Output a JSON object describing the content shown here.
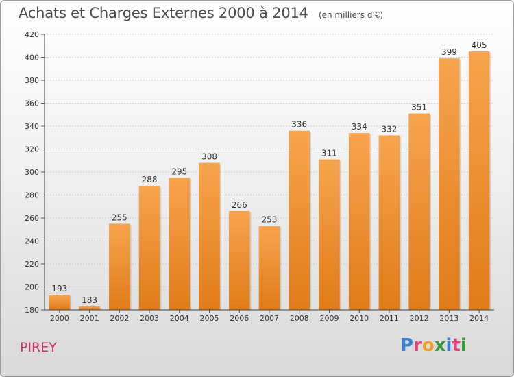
{
  "chart_data": {
    "type": "bar",
    "title": "Achats et Charges Externes 2000 à 2014",
    "subtitle": "(en milliers d'€)",
    "categories": [
      "2000",
      "2001",
      "2002",
      "2003",
      "2004",
      "2005",
      "2006",
      "2007",
      "2008",
      "2009",
      "2010",
      "2011",
      "2012",
      "2013",
      "2014"
    ],
    "values": [
      193,
      183,
      255,
      288,
      295,
      308,
      266,
      253,
      336,
      311,
      334,
      332,
      351,
      399,
      405
    ],
    "ylim": [
      180,
      420
    ],
    "yticks": [
      180,
      200,
      220,
      240,
      260,
      280,
      300,
      320,
      340,
      360,
      380,
      400,
      420
    ],
    "grid": true,
    "bar_color_top": "#f7a44e",
    "bar_color_bottom": "#e07b18"
  },
  "footer": {
    "city": "PIREY",
    "brand_letters": [
      "P",
      "r",
      "o",
      "x",
      "i",
      "t",
      "i"
    ],
    "brand_colors": [
      "#3a7fd0",
      "#e0447a",
      "#f0a020",
      "#3a9a3a",
      "#3a7fd0",
      "#e0447a",
      "#3a9a3a"
    ]
  }
}
